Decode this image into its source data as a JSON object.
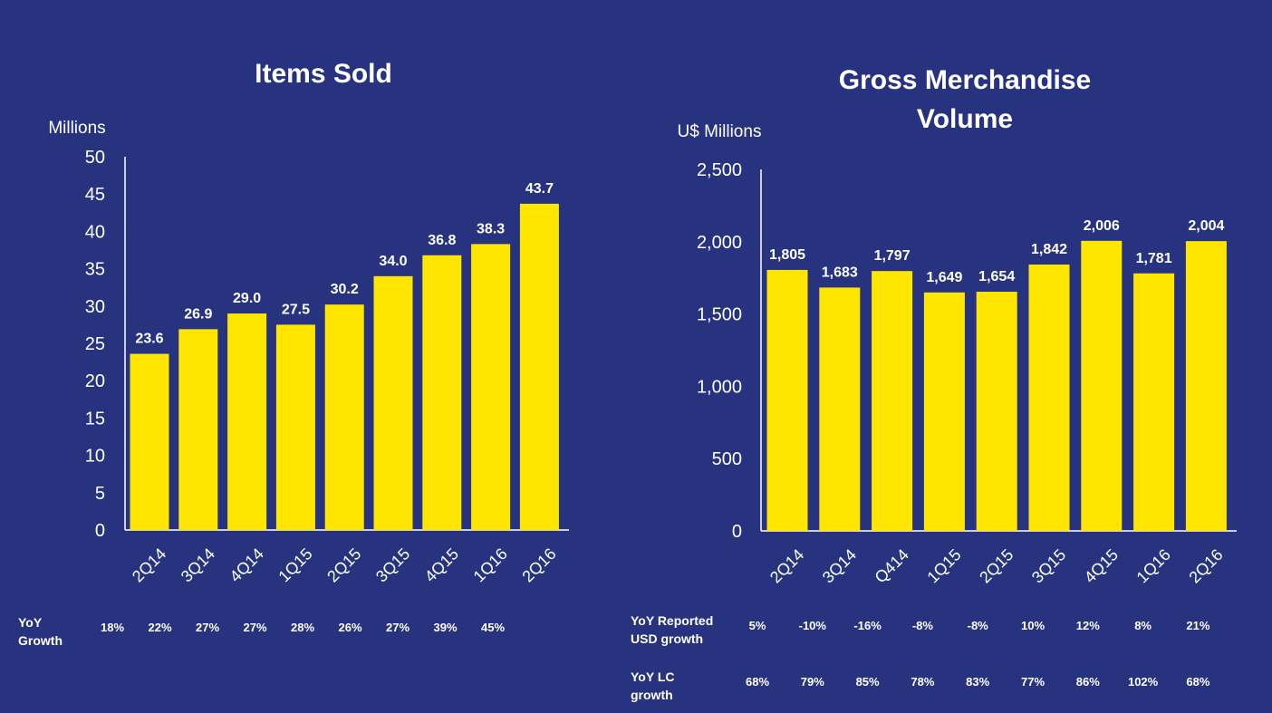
{
  "colors": {
    "background": "#283380",
    "bar": "#ffe600",
    "text": "#ffffff"
  },
  "chart_data": [
    {
      "type": "bar",
      "title": "Items Sold",
      "ylabel": "Millions",
      "categories": [
        "2Q14",
        "3Q14",
        "4Q14",
        "1Q15",
        "2Q15",
        "3Q15",
        "4Q15",
        "1Q16",
        "2Q16"
      ],
      "values": [
        23.6,
        26.9,
        29.0,
        27.5,
        30.2,
        34.0,
        36.8,
        38.3,
        43.7
      ],
      "value_labels": [
        "23.6",
        "26.9",
        "29.0",
        "27.5",
        "30.2",
        "34.0",
        "36.8",
        "38.3",
        "43.7"
      ],
      "ylim": [
        0,
        50
      ],
      "yticks": [
        0,
        5,
        10,
        15,
        20,
        25,
        30,
        35,
        40,
        45,
        50
      ],
      "ytick_labels": [
        "0",
        "5",
        "10",
        "15",
        "20",
        "25",
        "30",
        "35",
        "40",
        "45",
        "50"
      ],
      "growth_rows": [
        {
          "label": [
            "YoY",
            "Growth"
          ],
          "values": [
            "18%",
            "22%",
            "27%",
            "27%",
            "28%",
            "26%",
            "27%",
            "39%",
            "45%"
          ]
        }
      ]
    },
    {
      "type": "bar",
      "title": [
        "Gross Merchandise",
        "Volume"
      ],
      "ylabel": "U$ Millions",
      "categories": [
        "2Q14",
        "3Q14",
        "Q414",
        "1Q15",
        "2Q15",
        "3Q15",
        "4Q15",
        "1Q16",
        "2Q16"
      ],
      "values": [
        1805,
        1683,
        1797,
        1649,
        1654,
        1842,
        2006,
        1781,
        2004
      ],
      "value_labels": [
        "1,805",
        "1,683",
        "1,797",
        "1,649",
        "1,654",
        "1,842",
        "2,006",
        "1,781",
        "2,004"
      ],
      "ylim": [
        0,
        2500
      ],
      "yticks": [
        0,
        500,
        1000,
        1500,
        2000,
        2500
      ],
      "ytick_labels": [
        "0",
        "500",
        "1,000",
        "1,500",
        "2,000",
        "2,500"
      ],
      "growth_rows": [
        {
          "label": [
            "YoY Reported",
            "USD growth"
          ],
          "values": [
            "5%",
            "-10%",
            "-16%",
            "-8%",
            "-8%",
            "10%",
            "12%",
            "8%",
            "21%"
          ]
        },
        {
          "label": [
            "YoY  LC",
            "growth"
          ],
          "values": [
            "68%",
            "79%",
            "85%",
            "78%",
            "83%",
            "77%",
            "86%",
            "102%",
            "68%"
          ]
        }
      ]
    }
  ]
}
